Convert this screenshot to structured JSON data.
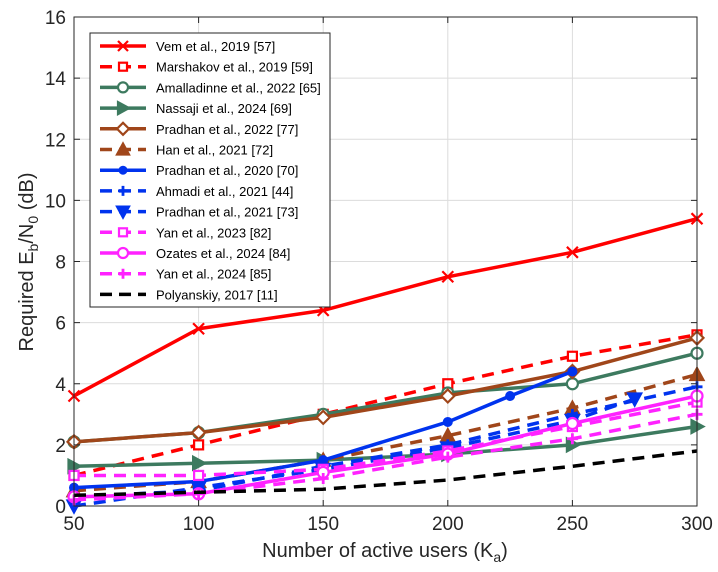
{
  "chart_data": {
    "type": "line",
    "xlabel": "Number of active users (K",
    "xlabel_sub": "a",
    "xlabel_close": ")",
    "ylabel": "Required E",
    "ylabel_sub1": "b",
    "ylabel_mid": "/N",
    "ylabel_sub2": "0",
    "ylabel_end": " (dB)",
    "xlim": [
      50,
      300
    ],
    "ylim": [
      0,
      16
    ],
    "xticks": [
      50,
      100,
      150,
      200,
      250,
      300
    ],
    "yticks": [
      0,
      2,
      4,
      6,
      8,
      10,
      12,
      14,
      16
    ],
    "grid": true,
    "legend_position": "top-left",
    "series": [
      {
        "name": "Vem et al., 2019 [57]",
        "color": "#ff0000",
        "dash": "solid",
        "marker": "x",
        "x": [
          50,
          100,
          150,
          200,
          250,
          300
        ],
        "y": [
          3.6,
          5.8,
          6.4,
          7.5,
          8.3,
          9.4
        ]
      },
      {
        "name": "Marshakov et al., 2019 [59]",
        "color": "#ff0000",
        "dash": "dashed",
        "marker": "square",
        "x": [
          50,
          100,
          150,
          200,
          250,
          300
        ],
        "y": [
          1.0,
          2.0,
          3.0,
          4.0,
          4.9,
          5.6
        ]
      },
      {
        "name": "Amalladinne et al., 2022 [65]",
        "color": "#3d7a5f",
        "dash": "solid",
        "marker": "circle",
        "x": [
          50,
          100,
          150,
          200,
          250,
          300
        ],
        "y": [
          2.1,
          2.4,
          3.0,
          3.7,
          4.0,
          5.0
        ]
      },
      {
        "name": "Nassaji et al., 2024 [69]",
        "color": "#3d7a5f",
        "dash": "solid",
        "marker": "triangle-right",
        "x": [
          50,
          100,
          150,
          200,
          250,
          300
        ],
        "y": [
          1.3,
          1.4,
          1.5,
          1.7,
          2.0,
          2.6
        ]
      },
      {
        "name": "Pradhan et al., 2022 [77]",
        "color": "#a0461a",
        "dash": "solid",
        "marker": "diamond",
        "x": [
          50,
          100,
          150,
          200,
          250,
          300
        ],
        "y": [
          2.1,
          2.4,
          2.9,
          3.6,
          4.4,
          5.5
        ]
      },
      {
        "name": "Han et al., 2021 [72]",
        "color": "#a0461a",
        "dash": "dashed",
        "marker": "triangle-up",
        "x": [
          50,
          100,
          150,
          200,
          250,
          300
        ],
        "y": [
          0.5,
          0.8,
          1.5,
          2.3,
          3.2,
          4.3
        ]
      },
      {
        "name": "Pradhan et al., 2020 [70]",
        "color": "#0033ee",
        "dash": "solid",
        "marker": "dot",
        "x": [
          50,
          100,
          150,
          200,
          225,
          250
        ],
        "y": [
          0.6,
          0.8,
          1.5,
          2.75,
          3.6,
          4.4
        ]
      },
      {
        "name": "Ahmadi et al., 2021 [44]",
        "color": "#0033ee",
        "dash": "dashed",
        "marker": "plus",
        "x": [
          50,
          100,
          150,
          200,
          250,
          300
        ],
        "y": [
          0.3,
          0.5,
          1.3,
          2.0,
          3.0,
          3.9
        ]
      },
      {
        "name": "Pradhan et al., 2021 [73]",
        "color": "#0033ee",
        "dash": "dashed",
        "marker": "triangle-down",
        "x": [
          50,
          100,
          150,
          200,
          250,
          275
        ],
        "y": [
          0.0,
          0.6,
          1.2,
          1.9,
          2.8,
          3.5
        ]
      },
      {
        "name": "Yan et al., 2023 [82]",
        "color": "#ff22ff",
        "dash": "dashed",
        "marker": "square",
        "x": [
          50,
          100,
          150,
          200,
          250,
          300
        ],
        "y": [
          1.0,
          1.0,
          1.2,
          1.8,
          2.6,
          3.4
        ]
      },
      {
        "name": "Ozates et al., 2024 [84]",
        "color": "#ff22ff",
        "dash": "solid",
        "marker": "circle",
        "x": [
          50,
          100,
          150,
          200,
          250,
          300
        ],
        "y": [
          0.3,
          0.4,
          1.1,
          1.7,
          2.7,
          3.6
        ]
      },
      {
        "name": "Yan et al., 2024 [85]",
        "color": "#ff22ff",
        "dash": "dashed",
        "marker": "plus",
        "x": [
          50,
          100,
          150,
          200,
          250,
          300
        ],
        "y": [
          0.2,
          0.4,
          0.9,
          1.6,
          2.2,
          3.0
        ]
      },
      {
        "name": "Polyanskiy, 2017 [11]",
        "color": "#000000",
        "dash": "dashed",
        "marker": "none",
        "x": [
          50,
          100,
          150,
          200,
          250,
          300
        ],
        "y": [
          0.35,
          0.45,
          0.55,
          0.85,
          1.3,
          1.8
        ]
      }
    ]
  }
}
